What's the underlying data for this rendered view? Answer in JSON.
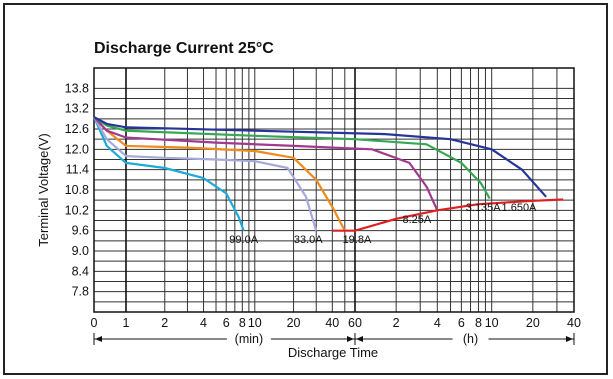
{
  "chart_data": {
    "type": "line",
    "title": "Discharge Current 25°C",
    "xlabel": "Discharge Time",
    "ylabel": "Terminal Voltage(V)",
    "ylim": [
      7.2,
      14.4
    ],
    "yticks": [
      "13.8",
      "13.2",
      "12.6",
      "12.0",
      "11.4",
      "10.8",
      "10.2",
      "9.6",
      "9.0",
      "8.4",
      "7.8"
    ],
    "ytick_values": [
      13.8,
      13.2,
      12.6,
      12.0,
      11.4,
      10.8,
      10.2,
      9.6,
      9.0,
      8.4,
      7.8
    ],
    "x_scale": "log, minutes (1 min – 40 h)",
    "xticks": [
      {
        "label": "0",
        "min": 0.5
      },
      {
        "label": "1",
        "min": 1
      },
      {
        "label": "2",
        "min": 2
      },
      {
        "label": "4",
        "min": 4
      },
      {
        "label": "6",
        "min": 6
      },
      {
        "label": "8",
        "min": 8
      },
      {
        "label": "10",
        "min": 10
      },
      {
        "label": "20",
        "min": 20
      },
      {
        "label": "40",
        "min": 40
      },
      {
        "label": "60",
        "min": 60
      },
      {
        "label": "2",
        "min": 120
      },
      {
        "label": "4",
        "min": 240
      },
      {
        "label": "6",
        "min": 360
      },
      {
        "label": "8",
        "min": 480
      },
      {
        "label": "10",
        "min": 600
      },
      {
        "label": "20",
        "min": 1200
      },
      {
        "label": "40",
        "min": 2400
      }
    ],
    "unit_labels": {
      "min": "(min)",
      "h": "(h)"
    },
    "grid": true,
    "end_curve": {
      "color": "#e02020",
      "points": [
        [
          40,
          9.6
        ],
        [
          60,
          9.6
        ],
        [
          120,
          9.95
        ],
        [
          240,
          10.2
        ],
        [
          480,
          10.38
        ],
        [
          1200,
          10.48
        ],
        [
          2000,
          10.52
        ]
      ]
    },
    "series": [
      {
        "name": "99.0A",
        "color": "#1ea9d8",
        "points": [
          [
            0.5,
            12.95
          ],
          [
            0.7,
            12.1
          ],
          [
            1,
            11.6
          ],
          [
            2,
            11.45
          ],
          [
            4,
            11.15
          ],
          [
            6,
            10.7
          ],
          [
            7.5,
            10.0
          ],
          [
            8.2,
            9.6
          ]
        ],
        "label_at": [
          8.2,
          9.35
        ]
      },
      {
        "name": "33.0A",
        "color": "#a7a8dc",
        "points": [
          [
            0.5,
            12.95
          ],
          [
            0.7,
            12.3
          ],
          [
            1,
            11.8
          ],
          [
            2,
            11.75
          ],
          [
            5,
            11.7
          ],
          [
            10,
            11.65
          ],
          [
            18,
            11.45
          ],
          [
            25,
            10.6
          ],
          [
            30,
            9.6
          ]
        ],
        "label_at": [
          26,
          9.35
        ]
      },
      {
        "name": "19.8A",
        "color": "#ef8a1c",
        "points": [
          [
            0.5,
            12.95
          ],
          [
            0.7,
            12.55
          ],
          [
            1,
            12.1
          ],
          [
            3,
            12.05
          ],
          [
            10,
            11.95
          ],
          [
            20,
            11.75
          ],
          [
            30,
            11.1
          ],
          [
            40,
            10.3
          ],
          [
            50,
            9.6
          ]
        ],
        "label_at": [
          62,
          9.35
        ]
      },
      {
        "name": "8.25A",
        "color": "#a2398e",
        "points": [
          [
            0.5,
            12.95
          ],
          [
            0.7,
            12.55
          ],
          [
            1,
            12.35
          ],
          [
            5,
            12.2
          ],
          [
            20,
            12.1
          ],
          [
            80,
            12.0
          ],
          [
            150,
            11.6
          ],
          [
            200,
            10.9
          ],
          [
            240,
            10.2
          ]
        ],
        "label_at": [
          170,
          9.95
        ]
      },
      {
        "name": "3.135A",
        "color": "#35a853",
        "points": [
          [
            0.5,
            12.95
          ],
          [
            0.7,
            12.7
          ],
          [
            1,
            12.55
          ],
          [
            10,
            12.4
          ],
          [
            60,
            12.3
          ],
          [
            200,
            12.15
          ],
          [
            360,
            11.6
          ],
          [
            500,
            11.0
          ],
          [
            580,
            10.55
          ]
        ],
        "label_at": [
          520,
          10.3
        ]
      },
      {
        "name": "1.650A",
        "color": "#27349a",
        "points": [
          [
            0.5,
            12.95
          ],
          [
            0.7,
            12.75
          ],
          [
            1,
            12.65
          ],
          [
            10,
            12.55
          ],
          [
            100,
            12.45
          ],
          [
            300,
            12.3
          ],
          [
            600,
            12.0
          ],
          [
            1000,
            11.4
          ],
          [
            1500,
            10.6
          ]
        ],
        "label_at": [
          950,
          10.3
        ]
      }
    ]
  }
}
